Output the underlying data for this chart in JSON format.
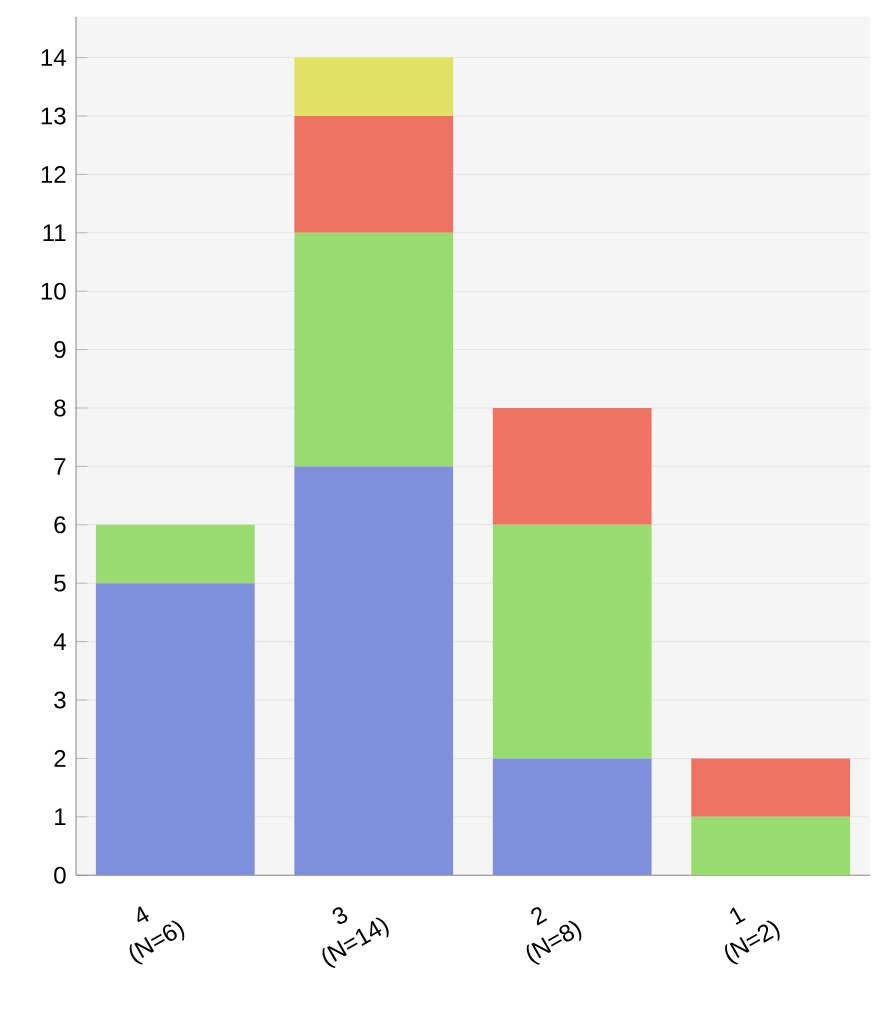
{
  "chart_data": {
    "type": "bar",
    "stacked": true,
    "categories": [
      "4 (N=6)",
      "3 (N=14)",
      "2 (N=8)",
      "1 (N=2)"
    ],
    "series": [
      {
        "color": "#8090dc",
        "values": [
          5,
          7,
          2,
          0
        ]
      },
      {
        "color": "#98dc70",
        "values": [
          1,
          4,
          4,
          1
        ]
      },
      {
        "color": "#f07262",
        "values": [
          0,
          2,
          2,
          1
        ]
      },
      {
        "color": "#e2e262",
        "values": [
          0,
          1,
          0,
          0
        ]
      }
    ],
    "ylim": [
      0,
      14.7
    ],
    "yticks": [
      0,
      1,
      2,
      3,
      4,
      5,
      6,
      7,
      8,
      9,
      10,
      11,
      12,
      13,
      14
    ],
    "grid": "y"
  }
}
